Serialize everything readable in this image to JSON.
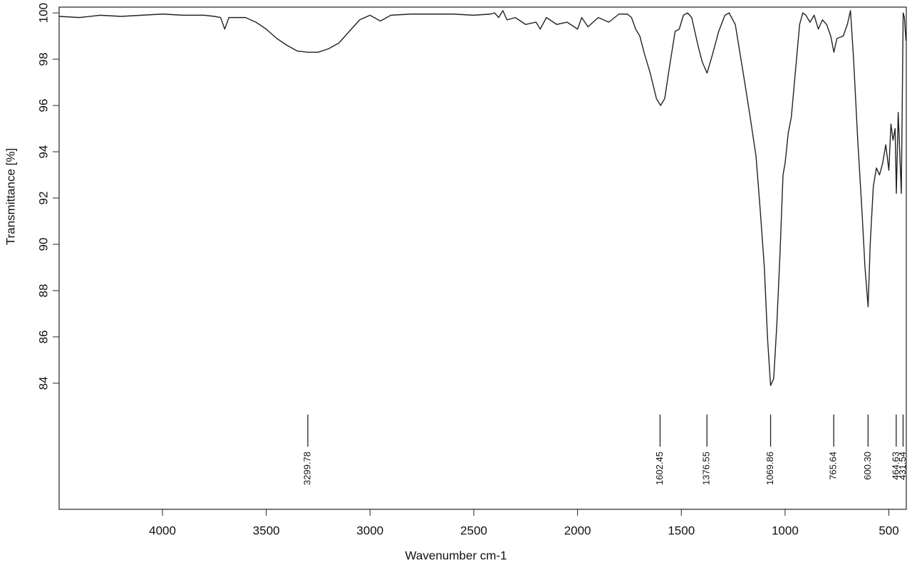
{
  "chart_data": {
    "type": "line",
    "xlabel": "Wavenumber cm-1",
    "ylabel": "Transmittance [%]",
    "color": "#222222",
    "xlim": [
      4498,
      416
    ],
    "ylim": [
      78.55,
      100.25
    ],
    "xticks": [
      4000,
      3500,
      3000,
      2500,
      2000,
      1500,
      1000,
      500
    ],
    "yticks": [
      84,
      86,
      88,
      90,
      92,
      94,
      96,
      98,
      100
    ],
    "peaks": [
      3299.78,
      1602.45,
      1376.55,
      1069.86,
      765.64,
      {
        "value": 600.3,
        "label": "600.30"
      },
      464.63,
      431.54
    ],
    "x": [
      4498,
      4400,
      4300,
      4200,
      4100,
      4000,
      3900,
      3800,
      3750,
      3720,
      3700,
      3680,
      3600,
      3550,
      3500,
      3450,
      3400,
      3350,
      3300,
      3250,
      3200,
      3150,
      3100,
      3050,
      3000,
      2950,
      2900,
      2800,
      2700,
      2600,
      2500,
      2420,
      2400,
      2380,
      2360,
      2340,
      2300,
      2250,
      2200,
      2180,
      2150,
      2100,
      2050,
      2000,
      1980,
      1950,
      1900,
      1850,
      1800,
      1760,
      1740,
      1720,
      1700,
      1680,
      1650,
      1620,
      1600,
      1580,
      1560,
      1530,
      1510,
      1490,
      1470,
      1450,
      1420,
      1400,
      1376,
      1350,
      1320,
      1290,
      1270,
      1240,
      1200,
      1170,
      1140,
      1120,
      1100,
      1085,
      1070,
      1055,
      1040,
      1025,
      1010,
      1000,
      985,
      970,
      950,
      930,
      915,
      900,
      880,
      860,
      840,
      820,
      800,
      780,
      765,
      750,
      720,
      700,
      685,
      670,
      650,
      630,
      615,
      600,
      590,
      575,
      560,
      545,
      530,
      515,
      500,
      490,
      480,
      470,
      464,
      455,
      440,
      431,
      425,
      418
    ],
    "values": [
      99.85,
      99.8,
      99.9,
      99.85,
      99.9,
      99.95,
      99.9,
      99.9,
      99.85,
      99.8,
      99.3,
      99.8,
      99.8,
      99.6,
      99.3,
      98.9,
      98.6,
      98.35,
      98.3,
      98.3,
      98.45,
      98.7,
      99.2,
      99.7,
      99.9,
      99.65,
      99.9,
      99.95,
      99.95,
      99.95,
      99.9,
      99.95,
      100.0,
      99.8,
      100.1,
      99.7,
      99.8,
      99.5,
      99.6,
      99.3,
      99.8,
      99.5,
      99.6,
      99.3,
      99.8,
      99.4,
      99.8,
      99.6,
      99.95,
      99.95,
      99.8,
      99.3,
      99.0,
      98.3,
      97.4,
      96.3,
      96.0,
      96.3,
      97.5,
      99.2,
      99.3,
      99.9,
      100.0,
      99.8,
      98.6,
      97.9,
      97.4,
      98.2,
      99.2,
      99.9,
      100.0,
      99.5,
      97.3,
      95.6,
      93.8,
      91.5,
      89.0,
      86.0,
      83.9,
      84.2,
      86.5,
      89.5,
      93.0,
      93.5,
      94.8,
      95.5,
      97.5,
      99.5,
      100.0,
      99.9,
      99.6,
      99.9,
      99.3,
      99.7,
      99.5,
      99.0,
      98.3,
      98.9,
      99.0,
      99.5,
      100.1,
      98.0,
      94.5,
      91.5,
      89.0,
      87.3,
      90.0,
      92.5,
      93.3,
      93.0,
      93.5,
      94.3,
      93.2,
      95.2,
      94.5,
      95.0,
      92.2,
      95.7,
      92.2,
      100.0,
      99.8,
      98.8
    ]
  }
}
